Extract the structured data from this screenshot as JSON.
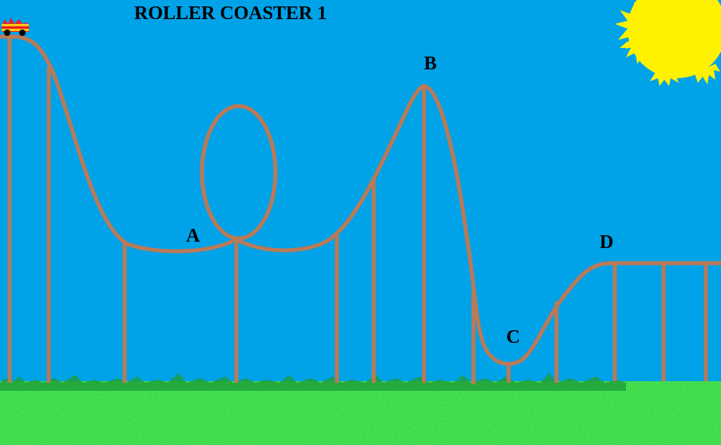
{
  "title": "ROLLER COASTER 1",
  "points": {
    "a": "A",
    "b": "B",
    "c": "C",
    "d": "D"
  },
  "colors": {
    "sky": "#00a2e8",
    "grass": "#22b14c",
    "grass_dark": "#148a22",
    "grass_light": "#5fe85f",
    "track": "#b97a57",
    "sun": "#fff200",
    "car_body": "#ed1c24",
    "car_stripe": "#ffc90e"
  }
}
